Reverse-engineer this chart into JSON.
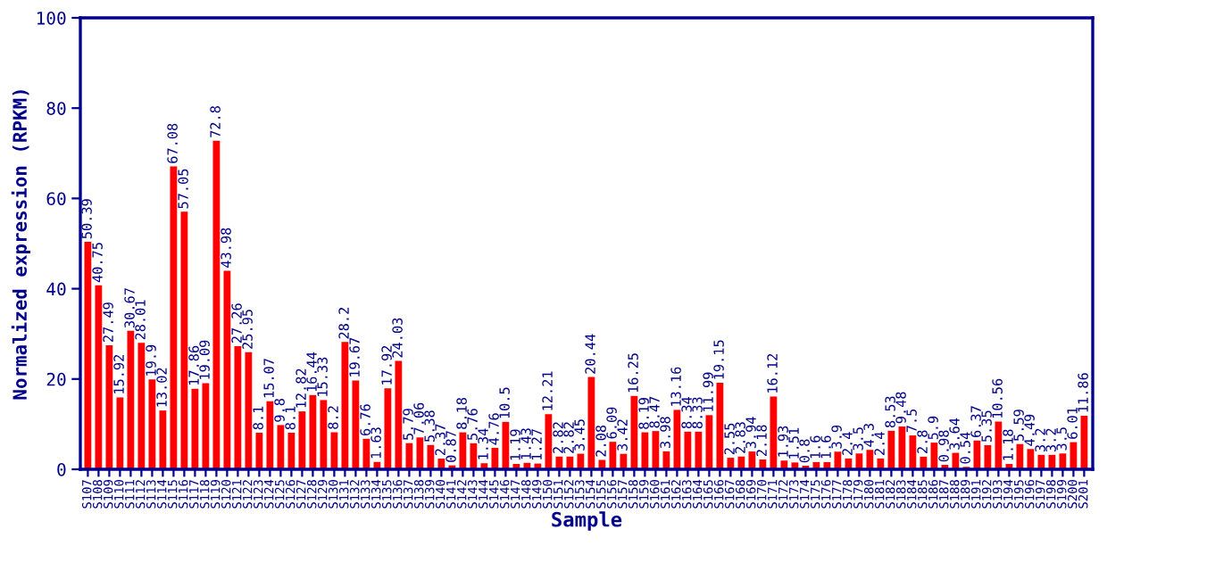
{
  "chart_data": {
    "type": "bar",
    "xlabel": "Sample",
    "ylabel": "Normalized expression (RPKM)",
    "categories": [
      "S107",
      "S108",
      "S109",
      "S110",
      "S111",
      "S112",
      "S113",
      "S114",
      "S115",
      "S116",
      "S117",
      "S118",
      "S119",
      "S120",
      "S121",
      "S122",
      "S123",
      "S124",
      "S125",
      "S126",
      "S127",
      "S128",
      "S129",
      "S130",
      "S131",
      "S132",
      "S133",
      "S134",
      "S135",
      "S136",
      "S137",
      "S138",
      "S139",
      "S140",
      "S141",
      "S142",
      "S143",
      "S144",
      "S145",
      "S146",
      "S147",
      "S148",
      "S149",
      "S150",
      "S151",
      "S152",
      "S153",
      "S154",
      "S155",
      "S156",
      "S157",
      "S158",
      "S159",
      "S160",
      "S161",
      "S162",
      "S163",
      "S164",
      "S165",
      "S166",
      "S167",
      "S168",
      "S169",
      "S170",
      "S171",
      "S172",
      "S173",
      "S174",
      "S175",
      "S176",
      "S177",
      "S178",
      "S179",
      "S180",
      "S181",
      "S182",
      "S183",
      "S184",
      "S185",
      "S186",
      "S187",
      "S188",
      "S189",
      "S191",
      "S192",
      "S193",
      "S194",
      "S195",
      "S196",
      "S197",
      "S198",
      "S199",
      "S200",
      "S201"
    ],
    "values": [
      50.39,
      40.75,
      27.49,
      15.92,
      30.67,
      28.01,
      19.9,
      13.02,
      67.08,
      57.05,
      17.86,
      19.09,
      72.8,
      43.98,
      27.26,
      25.95,
      8.1,
      15.07,
      9.8,
      8.1,
      12.82,
      16.44,
      15.33,
      8.2,
      28.2,
      19.67,
      6.76,
      1.63,
      17.92,
      24.03,
      5.79,
      7.06,
      5.38,
      2.37,
      0.87,
      8.18,
      5.76,
      1.34,
      4.76,
      10.5,
      1.19,
      1.43,
      1.27,
      12.21,
      2.82,
      2.82,
      3.45,
      20.44,
      2.08,
      6.09,
      3.42,
      16.25,
      8.19,
      8.47,
      3.98,
      13.16,
      8.34,
      8.33,
      11.99,
      19.15,
      2.55,
      2.83,
      3.94,
      2.18,
      16.12,
      1.93,
      1.51,
      0.8,
      1.6,
      1.6,
      3.9,
      2.4,
      3.5,
      4.3,
      2.4,
      8.53,
      9.48,
      7.5,
      2.8,
      5.9,
      0.98,
      3.64,
      0.54,
      6.37,
      5.35,
      10.56,
      1.18,
      5.59,
      4.49,
      3.2,
      3.2,
      3.5,
      6.01,
      11.86
    ],
    "color": "#ff0000",
    "ylim": [
      0,
      100
    ],
    "yticks": [
      0,
      20,
      40,
      60,
      80,
      100
    ],
    "data_labels": true,
    "grid": false,
    "legend": false
  }
}
